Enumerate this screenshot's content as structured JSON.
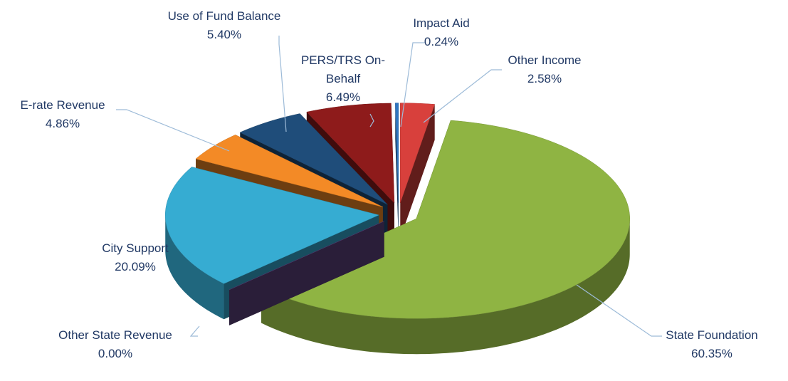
{
  "chart_data": {
    "type": "pie",
    "categories": [
      "Other Income",
      "State Foundation",
      "Other State Revenue",
      "City Support",
      "E-rate Revenue",
      "Use of Fund Balance",
      "PERS/TRS On-Behalf",
      "Impact Aid"
    ],
    "values": [
      2.58,
      60.35,
      0,
      20.09,
      4.86,
      5.4,
      6.49,
      0.24
    ],
    "value_labels": [
      "2.58%",
      "60.35%",
      "0.00%",
      "20.09%",
      "4.86%",
      "5.40%",
      "6.49%",
      "0.24%"
    ],
    "colors": [
      "#d8403c",
      "#8fb443",
      "#5e437f",
      "#36acd2",
      "#f38a26",
      "#1f4d7a",
      "#8e1b1b",
      "#2f76c0"
    ]
  }
}
